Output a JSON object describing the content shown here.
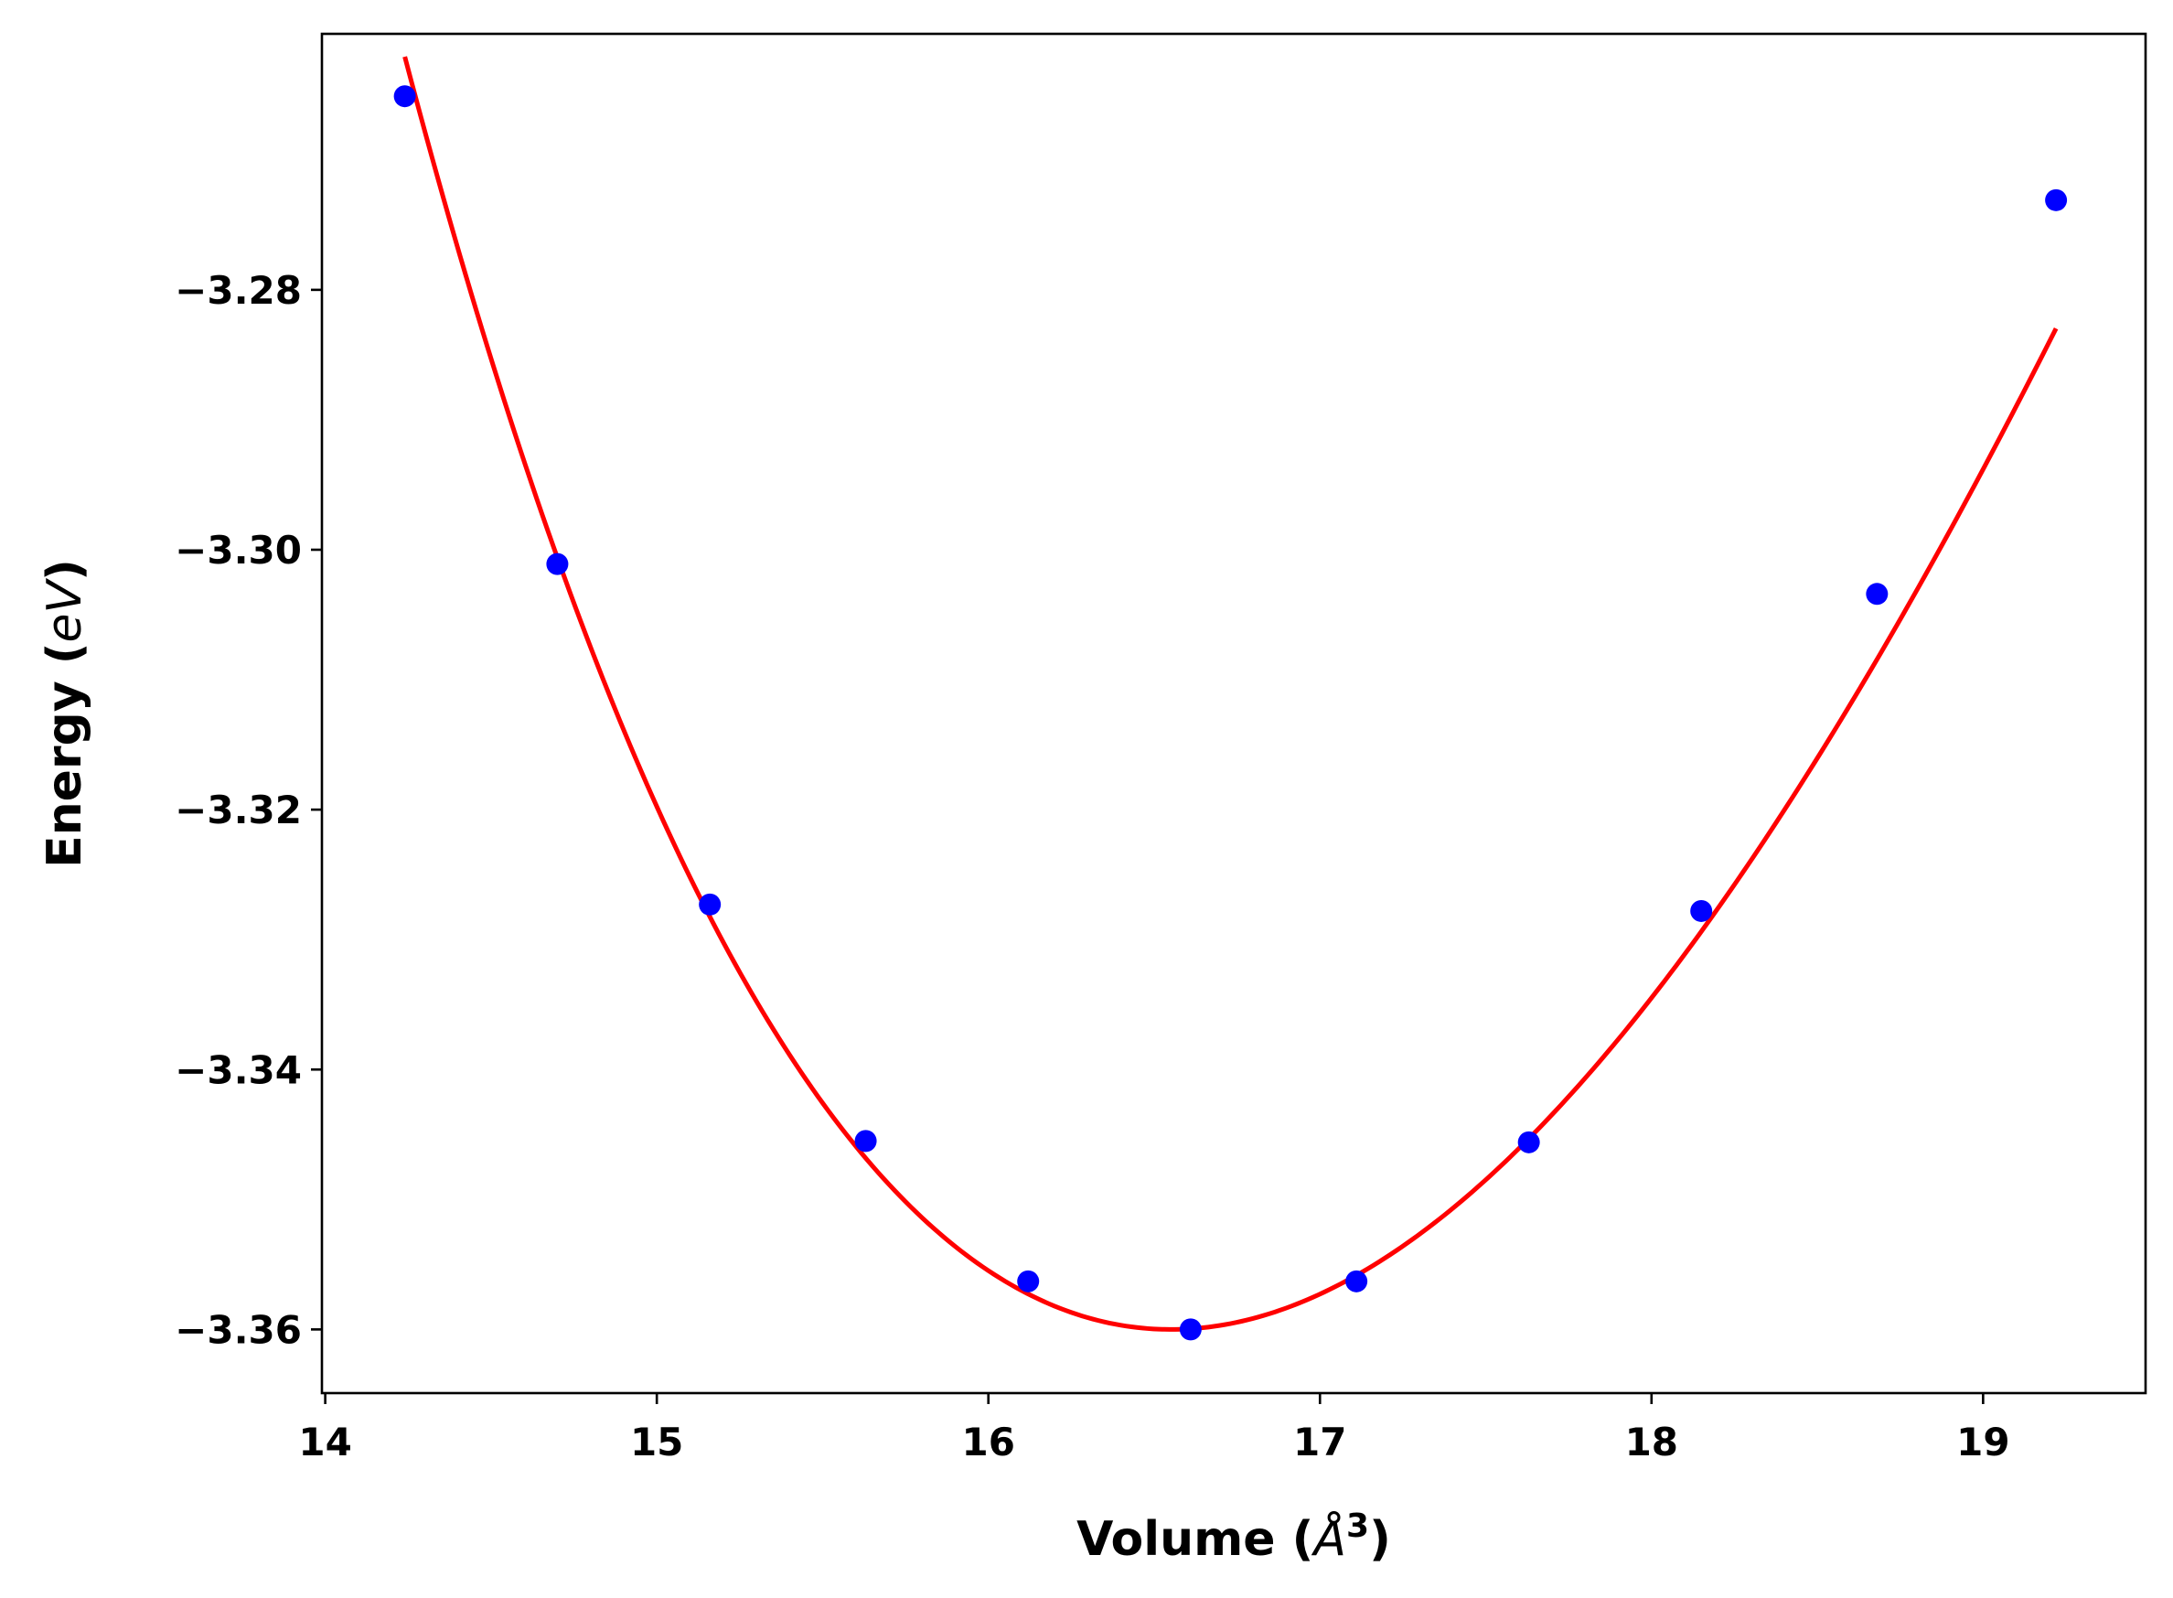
{
  "chart_data": {
    "type": "scatter",
    "title": "",
    "xlabel": "Volume (Å³)",
    "ylabel": "Energy (eV)",
    "xlabel_parts": {
      "prefix": "Volume (",
      "unit": "Å",
      "power": "3",
      "suffix": ")"
    },
    "ylabel_parts": {
      "prefix": "Energy (",
      "unit": "eV",
      "suffix": ")"
    },
    "xlim": [
      13.99,
      19.49
    ],
    "ylim": [
      -3.3649,
      -3.2603
    ],
    "xticks": [
      14,
      15,
      16,
      17,
      18,
      19
    ],
    "xtick_labels": [
      "14",
      "15",
      "16",
      "17",
      "18",
      "19"
    ],
    "yticks": [
      -3.36,
      -3.34,
      -3.32,
      -3.3,
      -3.28
    ],
    "ytick_labels": [
      "−3.36",
      "−3.34",
      "−3.32",
      "−3.30",
      "−3.28"
    ],
    "grid": false,
    "legend": "none",
    "series": [
      {
        "kind": "points",
        "color": "#0000ff",
        "x": [
          14.24,
          14.7,
          15.16,
          15.63,
          16.12,
          16.61,
          17.11,
          17.63,
          18.15,
          18.68,
          19.22
        ],
        "y": [
          -3.2651,
          -3.3011,
          -3.3273,
          -3.3455,
          -3.3563,
          -3.36,
          -3.3563,
          -3.3456,
          -3.3278,
          -3.3034,
          -3.2731
        ]
      },
      {
        "kind": "fit-line",
        "color": "#ff0000",
        "model": "birch-murnaghan",
        "E0": -3.36,
        "V0": 16.55,
        "B0": 0.466,
        "B0p": 4.3,
        "xrange": [
          14.24,
          19.22
        ]
      }
    ]
  }
}
